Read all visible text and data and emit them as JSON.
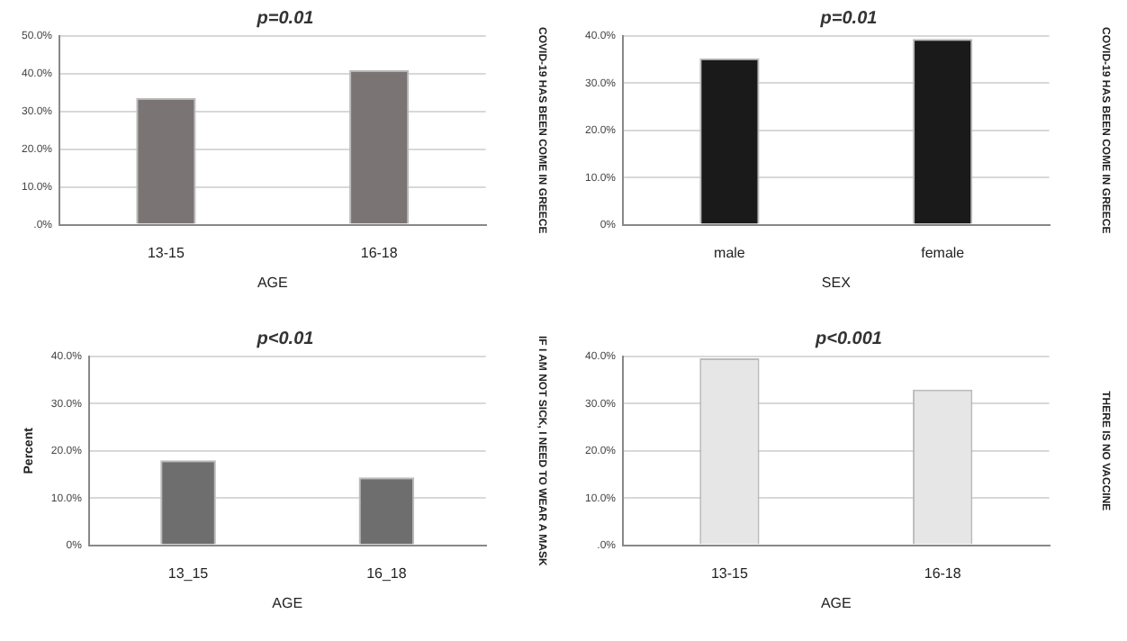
{
  "chart_data": [
    {
      "type": "bar",
      "title": "p=0.01",
      "xlabel": "AGE",
      "y2label": "COVID-19 HAS BEEN COME IN GREECE",
      "categories": [
        "13-15",
        "16-18"
      ],
      "values": [
        33.6,
        41.0
      ],
      "color": "#7a7474",
      "ylim": [
        0,
        50
      ],
      "yticks": [
        {
          "value": 0,
          "label": ".0%"
        },
        {
          "value": 10,
          "label": "10.0%"
        },
        {
          "value": 20,
          "label": "20.0%"
        },
        {
          "value": 30,
          "label": "30.0%"
        },
        {
          "value": 40,
          "label": "40.0%"
        },
        {
          "value": 50,
          "label": "50.0%"
        }
      ],
      "grid": "y"
    },
    {
      "type": "bar",
      "title": "p=0.01",
      "xlabel": "SEX",
      "y2label": "COVID-19 HAS BEEN COME IN GREECE",
      "categories": [
        "male",
        "female"
      ],
      "values": [
        35.3,
        39.4
      ],
      "color": "#1a1a1a",
      "ylim": [
        0,
        40
      ],
      "yticks": [
        {
          "value": 0,
          "label": "0%"
        },
        {
          "value": 10,
          "label": "10.0%"
        },
        {
          "value": 20,
          "label": "20.0%"
        },
        {
          "value": 30,
          "label": "30.0%"
        },
        {
          "value": 40,
          "label": "40.0%"
        }
      ],
      "grid": "y"
    },
    {
      "type": "bar",
      "title": "p<0.01",
      "xlabel": "AGE",
      "ylabel": "Percent",
      "y2label": "IF I AM NOT SICK, I NEED TO WEAR A MASK",
      "categories": [
        "13_15",
        "16_18"
      ],
      "values": [
        18.0,
        14.4
      ],
      "color": "#6e6e6e",
      "ylim": [
        0,
        40
      ],
      "yticks": [
        {
          "value": 0,
          "label": "0%"
        },
        {
          "value": 10,
          "label": "10.0%"
        },
        {
          "value": 20,
          "label": "20.0%"
        },
        {
          "value": 30,
          "label": "30.0%"
        },
        {
          "value": 40,
          "label": "40.0%"
        }
      ],
      "grid": "y"
    },
    {
      "type": "bar",
      "title": "p<0.001",
      "xlabel": "AGE",
      "y2label": "THERE IS NO VACCINE",
      "categories": [
        "13-15",
        "16-18"
      ],
      "values": [
        39.6,
        33.0
      ],
      "color": "#e6e6e6",
      "ylim": [
        0,
        40
      ],
      "yticks": [
        {
          "value": 0,
          "label": ".0%"
        },
        {
          "value": 10,
          "label": "10.0%"
        },
        {
          "value": 20,
          "label": "20.0%"
        },
        {
          "value": 30,
          "label": "30.0%"
        },
        {
          "value": 40,
          "label": "40.0%"
        }
      ],
      "grid": "y"
    }
  ]
}
